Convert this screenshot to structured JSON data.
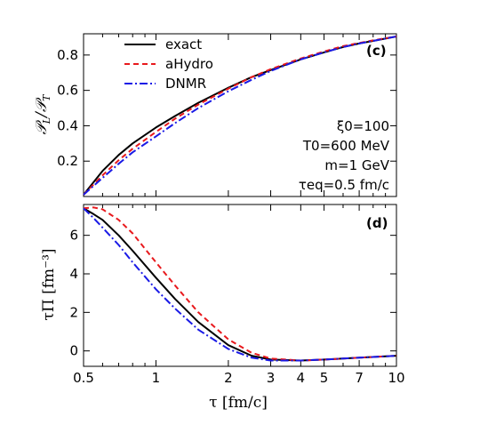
{
  "colors": {
    "exact": "#000000",
    "aHydro": "#e8191d",
    "DNMR": "#1a1ae6"
  },
  "chart_data": [
    {
      "type": "line",
      "panel_label": "(c)",
      "ylabel": "𝒫L/𝒫T",
      "xlabel": "",
      "xscale": "log",
      "xlim": [
        0.5,
        10
      ],
      "ylim": [
        0.0,
        0.92
      ],
      "yticks": [
        "0.2",
        "0.4",
        "0.6",
        "0.8"
      ],
      "legend": {
        "placement": "top-left",
        "entries": [
          "exact",
          "aHydro",
          "DNMR"
        ]
      },
      "annotations": [
        "ξ0=100",
        "T0=600 MeV",
        "m=1 GeV",
        "τeq=0.5 fm/c"
      ],
      "x": [
        0.5,
        0.6,
        0.7,
        0.8,
        1.0,
        1.2,
        1.5,
        2.0,
        2.5,
        3.0,
        4.0,
        5.0,
        6.0,
        7.0,
        8.0,
        10.0
      ],
      "series": [
        {
          "name": "exact",
          "values": [
            0.01,
            0.145,
            0.235,
            0.3,
            0.39,
            0.455,
            0.53,
            0.615,
            0.675,
            0.715,
            0.775,
            0.815,
            0.845,
            0.865,
            0.88,
            0.905
          ]
        },
        {
          "name": "aHydro",
          "values": [
            0.01,
            0.12,
            0.205,
            0.27,
            0.365,
            0.44,
            0.52,
            0.61,
            0.675,
            0.72,
            0.78,
            0.82,
            0.85,
            0.868,
            0.883,
            0.905
          ]
        },
        {
          "name": "DNMR",
          "values": [
            0.01,
            0.105,
            0.185,
            0.25,
            0.34,
            0.415,
            0.5,
            0.595,
            0.66,
            0.71,
            0.775,
            0.815,
            0.845,
            0.865,
            0.88,
            0.905
          ]
        }
      ]
    },
    {
      "type": "line",
      "panel_label": "(d)",
      "ylabel": "τΠ [fm⁻³]",
      "xlabel": "τ [fm/c]",
      "xscale": "log",
      "xlim": [
        0.5,
        10
      ],
      "ylim": [
        -0.8,
        7.6
      ],
      "yticks": [
        "0",
        "2",
        "4",
        "6"
      ],
      "xticks": [
        "0.5",
        "1",
        "2",
        "3",
        "4",
        "5",
        "7",
        "10"
      ],
      "x": [
        0.5,
        0.55,
        0.6,
        0.7,
        0.8,
        1.0,
        1.2,
        1.5,
        2.0,
        2.5,
        3.0,
        4.0,
        5.0,
        7.0,
        10.0
      ],
      "series": [
        {
          "name": "exact",
          "values": [
            7.4,
            7.1,
            6.8,
            6.0,
            5.2,
            3.8,
            2.7,
            1.5,
            0.3,
            -0.25,
            -0.45,
            -0.5,
            -0.45,
            -0.35,
            -0.25
          ]
        },
        {
          "name": "aHydro",
          "values": [
            7.4,
            7.45,
            7.35,
            6.8,
            6.1,
            4.6,
            3.4,
            2.0,
            0.6,
            -0.1,
            -0.4,
            -0.5,
            -0.45,
            -0.35,
            -0.25
          ]
        },
        {
          "name": "DNMR",
          "values": [
            7.4,
            6.9,
            6.4,
            5.5,
            4.6,
            3.2,
            2.2,
            1.1,
            0.1,
            -0.35,
            -0.5,
            -0.5,
            -0.45,
            -0.35,
            -0.25
          ]
        }
      ]
    }
  ]
}
